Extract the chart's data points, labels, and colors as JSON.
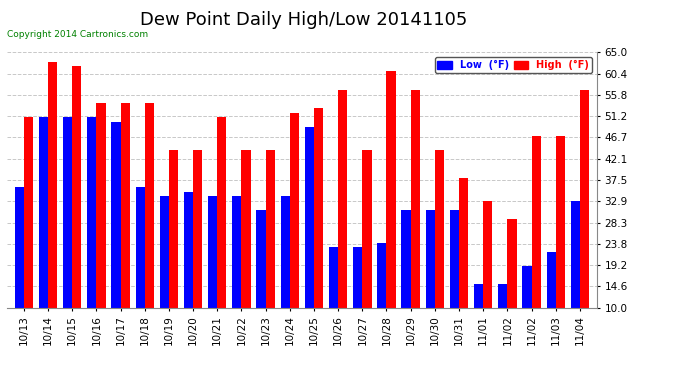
{
  "title": "Dew Point Daily High/Low 20141105",
  "copyright": "Copyright 2014 Cartronics.com",
  "dates": [
    "10/13",
    "10/14",
    "10/15",
    "10/16",
    "10/17",
    "10/18",
    "10/19",
    "10/20",
    "10/21",
    "10/22",
    "10/23",
    "10/24",
    "10/25",
    "10/26",
    "10/27",
    "10/28",
    "10/29",
    "10/30",
    "10/31",
    "11/01",
    "11/02",
    "11/02",
    "11/03",
    "11/04"
  ],
  "low_values": [
    36,
    51,
    51,
    51,
    50,
    36,
    34,
    35,
    34,
    34,
    31,
    34,
    49,
    23,
    23,
    24,
    31,
    31,
    31,
    15,
    15,
    19,
    22,
    33
  ],
  "high_values": [
    51,
    63,
    62,
    54,
    54,
    54,
    44,
    44,
    51,
    44,
    44,
    52,
    53,
    57,
    44,
    61,
    57,
    44,
    38,
    33,
    29,
    47,
    47,
    57
  ],
  "ylim_min": 10.0,
  "ylim_max": 65.0,
  "yticks": [
    10.0,
    14.6,
    19.2,
    23.8,
    28.3,
    32.9,
    37.5,
    42.1,
    46.7,
    51.2,
    55.8,
    60.4,
    65.0
  ],
  "bar_width": 0.38,
  "low_color": "#0000FF",
  "high_color": "#FF0000",
  "bg_color": "#FFFFFF",
  "grid_color": "#C8C8C8",
  "title_fontsize": 13,
  "tick_fontsize": 7.5,
  "legend_low_label": "Low  (°F)",
  "legend_high_label": "High  (°F)"
}
